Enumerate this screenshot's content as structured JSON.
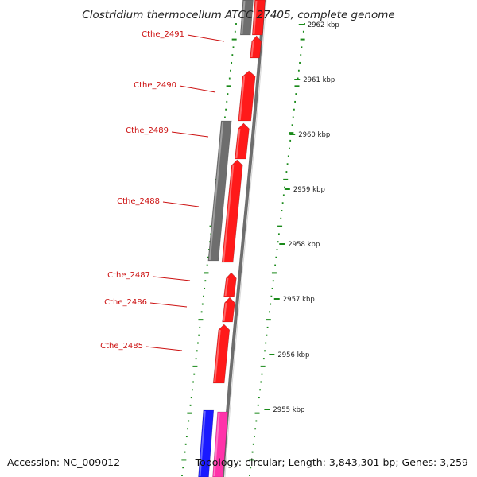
{
  "title": "Clostridium thermocellum ATCC 27405, complete genome",
  "footer": {
    "accession": "Accession: NC_009012",
    "topology": "Topology: circular; Length: 3,843,301 bp; Genes: 3,259"
  },
  "colors": {
    "forward_gene": "#ff1a1a",
    "reverse_gene": "#6e6e6e",
    "blue_feature": "#1a1aff",
    "pink_feature": "#ff33aa",
    "gc_ticks": "#1a8a1a",
    "backbone": "#6e6e6e",
    "label": "#cc1111"
  },
  "genes": [
    {
      "label": "Cthe_2491"
    },
    {
      "label": "Cthe_2490"
    },
    {
      "label": "Cthe_2489"
    },
    {
      "label": "Cthe_2488"
    },
    {
      "label": "Cthe_2487"
    },
    {
      "label": "Cthe_2486"
    },
    {
      "label": "Cthe_2485"
    }
  ],
  "position_ticks": [
    {
      "label": "2962 kbp"
    },
    {
      "label": "2961 kbp"
    },
    {
      "label": "2960 kbp"
    },
    {
      "label": "2959 kbp"
    },
    {
      "label": "2958 kbp"
    },
    {
      "label": "2957 kbp"
    },
    {
      "label": "2956 kbp"
    },
    {
      "label": "2955 kbp"
    }
  ]
}
